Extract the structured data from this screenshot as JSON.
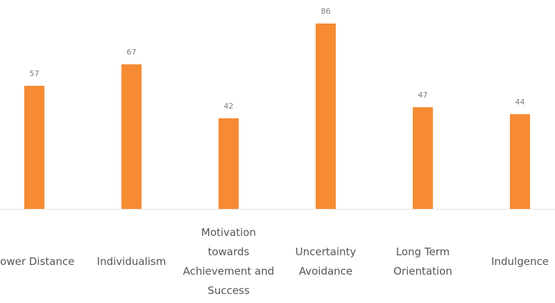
{
  "chart_data": {
    "type": "bar",
    "title": "",
    "xlabel": "",
    "ylabel": "",
    "categories": [
      "Power Distance",
      "Individualism",
      "Motivation towards Achievement and Success",
      "Uncertainty Avoidance",
      "Long Term Orientation",
      "Indulgence"
    ],
    "values": [
      57,
      67,
      42,
      86,
      47,
      44
    ],
    "ylim": [
      0,
      100
    ],
    "grid": false,
    "legend": null,
    "data_labels": true,
    "bar_color": "#f68b33"
  },
  "labels": {
    "c0": "Power Distance",
    "c1": "Individualism",
    "c2": "Motivation towards Achievement and Success",
    "c3": "Uncertainty Avoidance",
    "c4": "Long Term Orientation",
    "c5": "Indulgence"
  }
}
